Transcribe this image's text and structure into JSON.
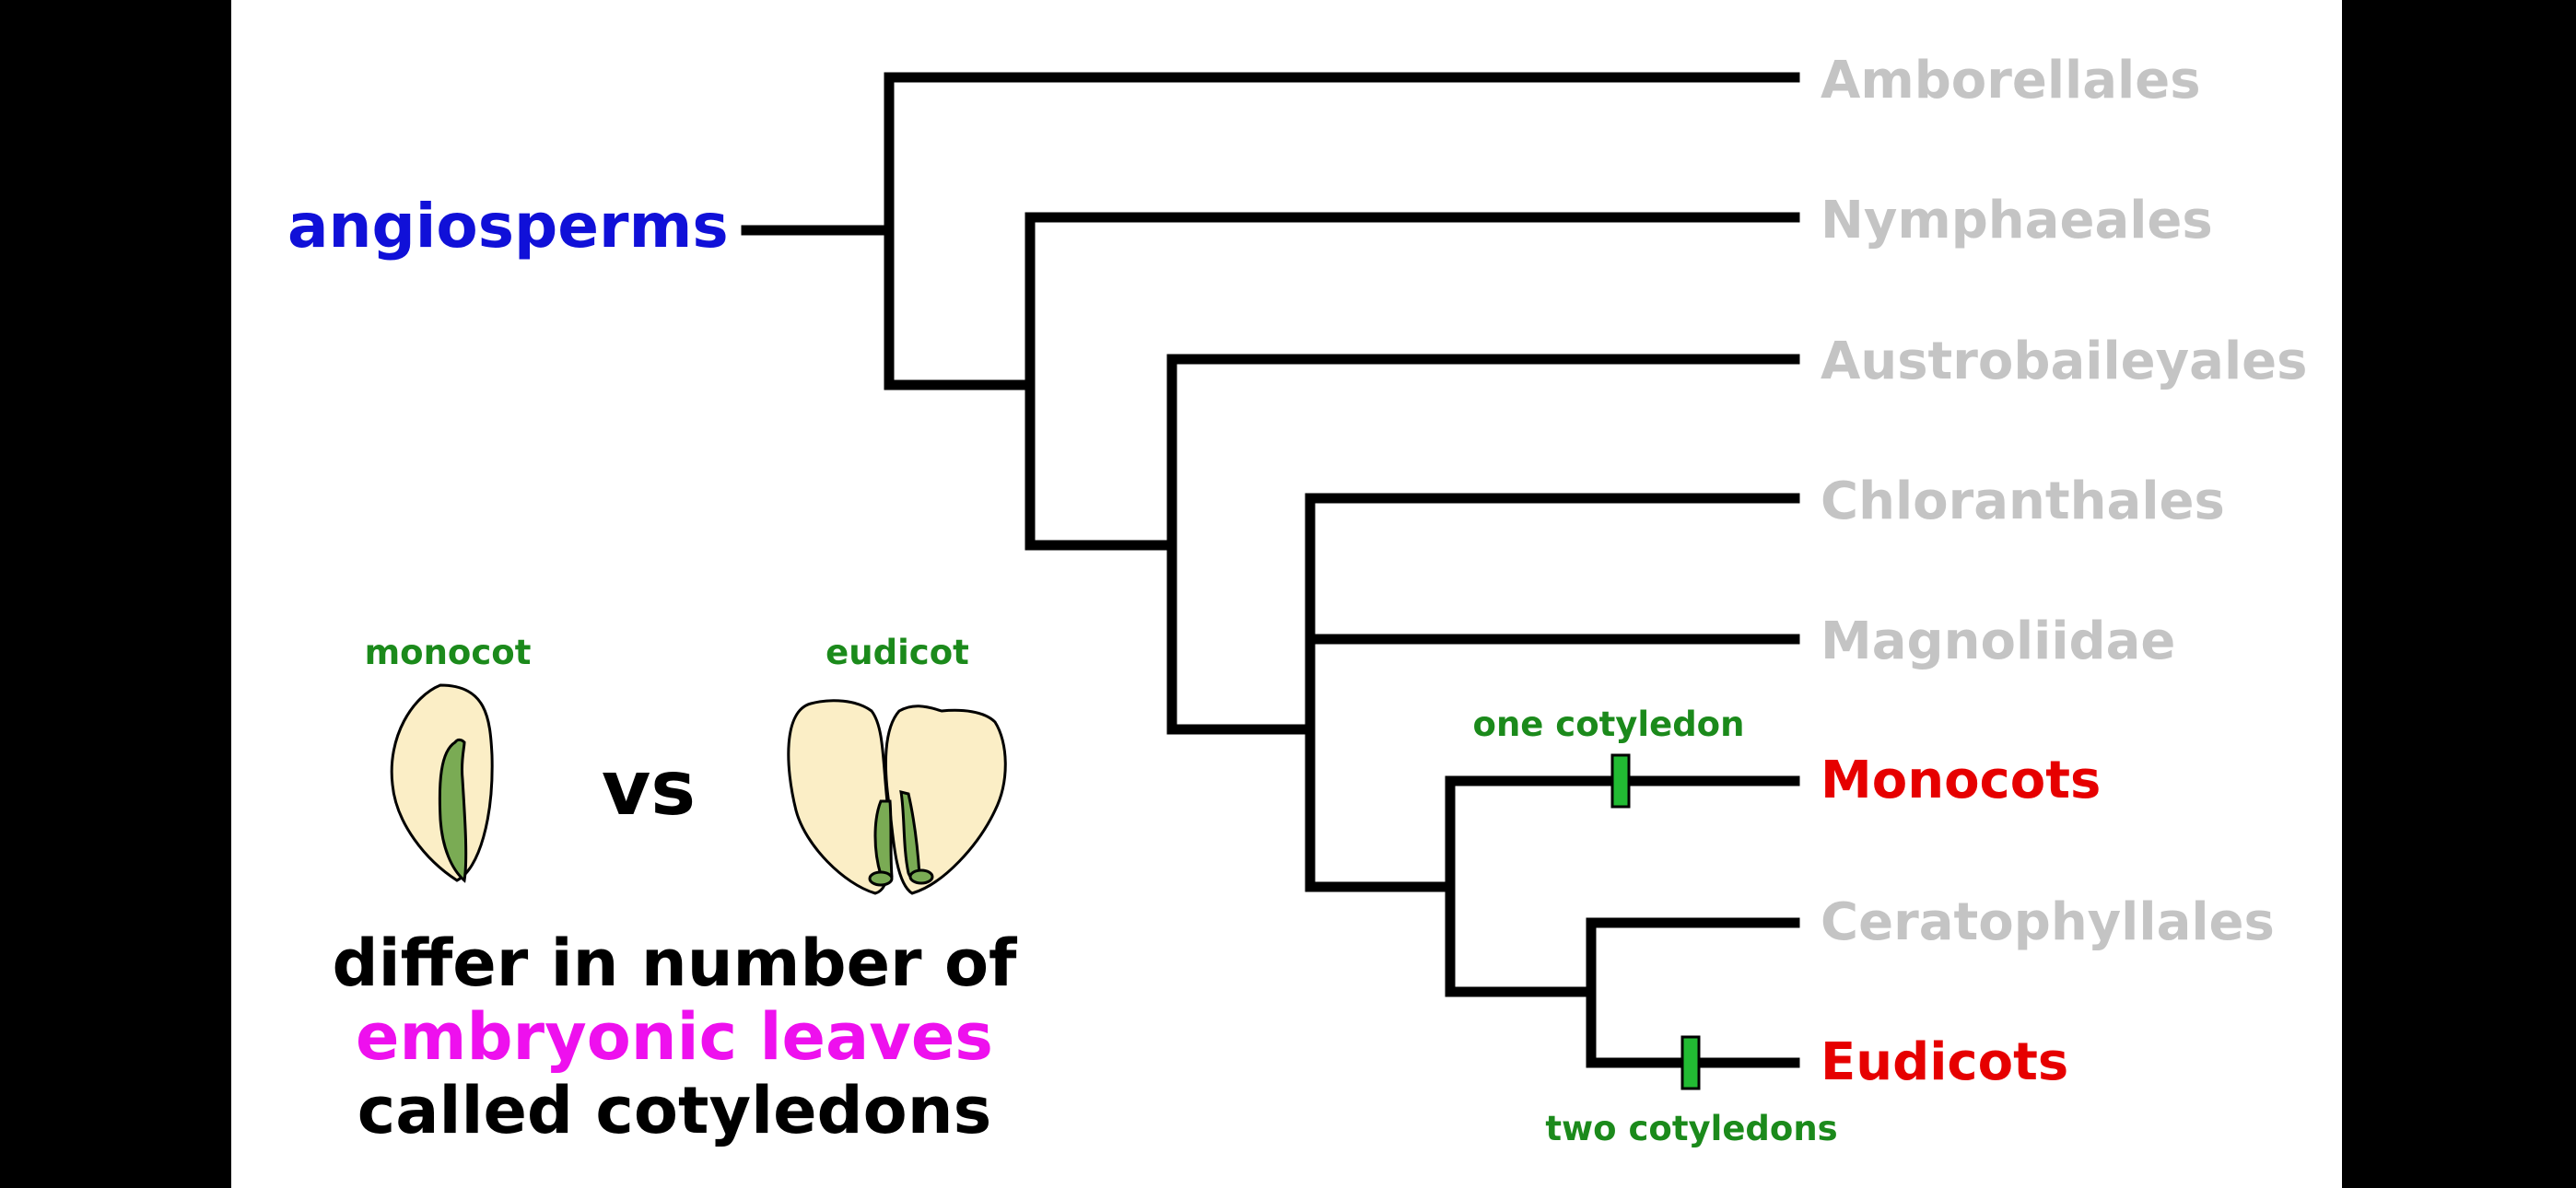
{
  "root_label": "angiosperms",
  "taxa": [
    {
      "name": "Amborellales",
      "highlight": false
    },
    {
      "name": "Nymphaeales",
      "highlight": false
    },
    {
      "name": "Austrobaileyales",
      "highlight": false
    },
    {
      "name": "Chloranthales",
      "highlight": false
    },
    {
      "name": "Magnoliidae",
      "highlight": false
    },
    {
      "name": "Monocots",
      "highlight": true
    },
    {
      "name": "Ceratophyllales",
      "highlight": false
    },
    {
      "name": "Eudicots",
      "highlight": true
    }
  ],
  "traits": {
    "monocot_trait": "one cotyledon",
    "eudicot_trait": "two cotyledons"
  },
  "seeds": {
    "monocot_label": "monocot",
    "vs_label": "vs",
    "eudicot_label": "eudicot"
  },
  "caption": {
    "line1": "differ in number of",
    "line2": "embryonic leaves",
    "line3": "called cotyledons"
  },
  "colors": {
    "root": "#1010d8",
    "muted_taxon": "#c4c4c4",
    "highlight_taxon": "#e60000",
    "trait_green": "#1b8a1b",
    "trait_marker": "#22bb33",
    "caption_accent": "#ee10ee",
    "tree_line": "#000000",
    "seed_fill": "#fbeec6",
    "embryo_fill": "#7aab54"
  }
}
